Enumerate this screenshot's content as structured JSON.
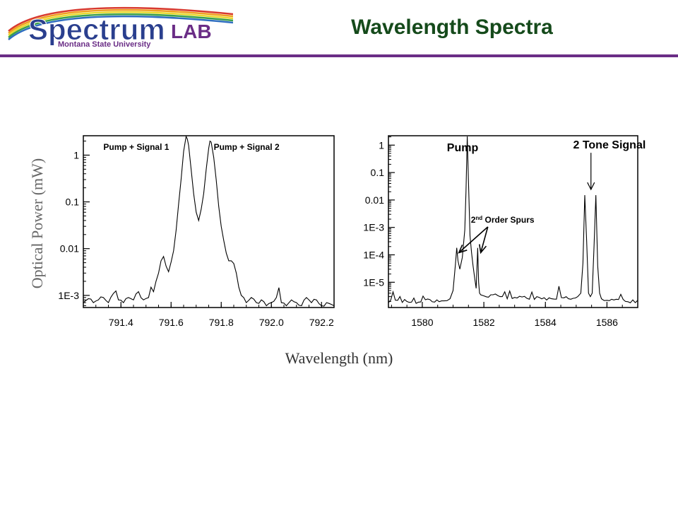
{
  "header": {
    "title": "Wavelength Spectra",
    "logo_main": "Spectrum",
    "logo_lab": "LAB",
    "logo_sub": "Montana State University",
    "colors": {
      "title": "#154a1b",
      "bar": "#6a2d86",
      "logo_blue": "#2a3f8e",
      "logo_purple": "#6a2d86"
    }
  },
  "shared": {
    "ylabel": "Optical Power (mW)",
    "xlabel": "Wavelength (nm)"
  },
  "chart_data": [
    {
      "type": "line",
      "y_scale": "log",
      "xlim": [
        791.25,
        792.25
      ],
      "ylim": [
        0.00055,
        2.6
      ],
      "xticks": [
        {
          "value": 791.4,
          "label": "791.4"
        },
        {
          "value": 791.6,
          "label": "791.6"
        },
        {
          "value": 791.8,
          "label": "791.8"
        },
        {
          "value": 792.0,
          "label": "792.0"
        },
        {
          "value": 792.2,
          "label": "792.2"
        }
      ],
      "yticks": [
        {
          "value": 1,
          "label": "1"
        },
        {
          "value": 0.1,
          "label": "0.1"
        },
        {
          "value": 0.01,
          "label": "0.01"
        },
        {
          "value": 0.001,
          "label": "1E-3"
        }
      ],
      "annotations": [
        {
          "text": "Pump + Signal 1",
          "x": 791.33,
          "y": 1.3
        },
        {
          "text": "Pump + Signal 2",
          "x": 791.77,
          "y": 1.3
        }
      ],
      "series": [
        {
          "x": [
            791.25,
            791.27,
            791.29,
            791.31,
            791.33,
            791.35,
            791.37,
            791.39,
            791.41,
            791.43,
            791.45,
            791.47,
            791.49,
            791.51,
            791.52,
            791.53,
            791.54,
            791.55,
            791.56,
            791.57,
            791.58,
            791.59,
            791.6,
            791.61,
            791.62,
            791.63,
            791.64,
            791.65,
            791.66,
            791.665,
            791.67,
            791.68,
            791.69,
            791.7,
            791.71,
            791.72,
            791.73,
            791.74,
            791.75,
            791.755,
            791.76,
            791.77,
            791.78,
            791.79,
            791.8,
            791.81,
            791.82,
            791.83,
            791.84,
            791.85,
            791.86,
            791.87,
            791.88,
            791.9,
            791.92,
            791.94,
            791.96,
            791.98,
            792.0,
            792.02,
            792.04,
            792.06,
            792.08,
            792.1,
            792.12,
            792.14,
            792.16,
            792.18,
            792.2,
            792.22,
            792.25
          ],
          "values": [
            0.0007,
            0.00085,
            0.0007,
            0.0008,
            0.0009,
            0.0007,
            0.0011,
            0.0008,
            0.0007,
            0.0009,
            0.0008,
            0.0012,
            0.0008,
            0.0009,
            0.0015,
            0.0012,
            0.002,
            0.003,
            0.0055,
            0.0068,
            0.0042,
            0.0032,
            0.0052,
            0.009,
            0.025,
            0.09,
            0.3,
            1.2,
            2.8,
            2.2,
            1.6,
            0.5,
            0.15,
            0.06,
            0.04,
            0.07,
            0.15,
            0.5,
            1.4,
            2.0,
            1.9,
            0.9,
            0.3,
            0.08,
            0.03,
            0.015,
            0.008,
            0.0055,
            0.0055,
            0.0048,
            0.003,
            0.0015,
            0.001,
            0.0007,
            0.0009,
            0.0007,
            0.0008,
            0.0006,
            0.0007,
            0.0009,
            0.0007,
            0.0006,
            0.0008,
            0.0007,
            0.0006,
            0.0009,
            0.0007,
            0.0008,
            0.0006,
            0.0007,
            0.0006
          ]
        }
      ]
    },
    {
      "type": "line",
      "y_scale": "log",
      "xlim": [
        1578.9,
        1587.0
      ],
      "ylim": [
        1.2e-06,
        2.2
      ],
      "xticks": [
        {
          "value": 1580,
          "label": "1580"
        },
        {
          "value": 1582,
          "label": "1582"
        },
        {
          "value": 1584,
          "label": "1584"
        },
        {
          "value": 1586,
          "label": "1586"
        }
      ],
      "yticks": [
        {
          "value": 1,
          "label": "1"
        },
        {
          "value": 0.1,
          "label": "0.1"
        },
        {
          "value": 0.01,
          "label": "0.01"
        },
        {
          "value": 0.001,
          "label": "1E-3"
        },
        {
          "value": 0.0001,
          "label": "1E-4"
        },
        {
          "value": 1e-05,
          "label": "1E-5"
        }
      ],
      "annotations": [
        {
          "text": "Pump",
          "x": 1580.8,
          "y": 0.6
        },
        {
          "text": "2 Tone Signal",
          "x": 1584.9,
          "y": 0.75
        },
        {
          "text": "2nd Order Spurs",
          "x": 1581.9,
          "y": 0.0019
        }
      ],
      "series": [
        {
          "x": [
            1578.9,
            1579.2,
            1579.5,
            1579.8,
            1580.1,
            1580.4,
            1580.7,
            1580.9,
            1581.0,
            1581.08,
            1581.12,
            1581.16,
            1581.22,
            1581.3,
            1581.38,
            1581.42,
            1581.46,
            1581.5,
            1581.55,
            1581.6,
            1581.65,
            1581.7,
            1581.75,
            1581.8,
            1581.83,
            1581.86,
            1581.9,
            1582.0,
            1582.3,
            1582.6,
            1583.0,
            1583.4,
            1583.8,
            1584.2,
            1584.6,
            1584.9,
            1585.05,
            1585.15,
            1585.22,
            1585.28,
            1585.34,
            1585.4,
            1585.46,
            1585.52,
            1585.58,
            1585.64,
            1585.7,
            1585.76,
            1585.82,
            1586.0,
            1586.3,
            1586.6,
            1587.0
          ],
          "values": [
            1.8e-06,
            2.2e-06,
            2e-06,
            1.7e-06,
            2.3e-06,
            1.9e-06,
            2.1e-06,
            2.5e-06,
            5e-06,
            5e-05,
            0.00018,
            6e-05,
            3e-05,
            8e-05,
            0.0008,
            0.02,
            2.2,
            0.05,
            0.0005,
            0.00012,
            4e-05,
            1.5e-05,
            6e-06,
            0.00018,
            1e-05,
            4e-06,
            3.5e-06,
            3.2e-06,
            3.5e-06,
            3e-06,
            2.8e-06,
            2.6e-06,
            2.8e-06,
            2.5e-06,
            2.7e-06,
            2.6e-06,
            3e-06,
            4e-06,
            5e-05,
            0.015,
            0.0003,
            4e-06,
            3e-06,
            4e-06,
            0.0002,
            0.015,
            4e-05,
            4e-06,
            2.5e-06,
            2.2e-06,
            2.4e-06,
            2e-06,
            2.2e-06
          ]
        }
      ]
    }
  ]
}
